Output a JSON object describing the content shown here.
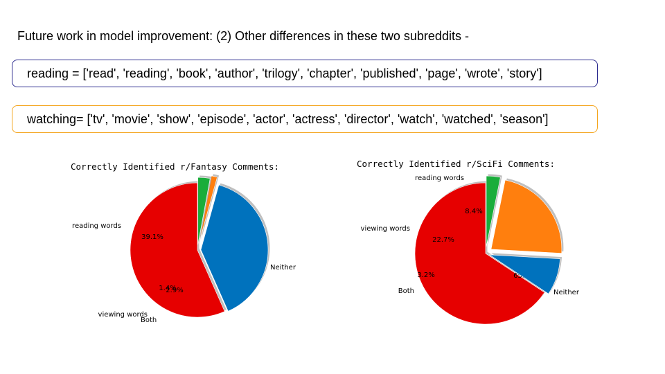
{
  "slide": {
    "heading": "Future work in model improvement: (2) Other differences in these two subreddits -",
    "reading_list": "reading = ['read', 'reading', 'book', 'author', 'trilogy', 'chapter', 'published', 'page', 'wrote', 'story']",
    "watching_list": "watching= ['tv', 'movie', 'show', 'episode', 'actor', 'actress', 'director', 'watch', 'watched', 'season']"
  },
  "colors": {
    "blue": "#0072bd",
    "orange": "#ff7f0e",
    "green": "#1aad3b",
    "red": "#e60000"
  },
  "chart_data": [
    {
      "type": "pie",
      "title": "Correctly Identified r/Fantasy Comments:",
      "categories": [
        "Neither",
        "reading words",
        "viewing words",
        "Both"
      ],
      "values": [
        56.7,
        39.1,
        1.4,
        2.9
      ],
      "labels": [
        "56.7%",
        "39.1%",
        "1.4%",
        "2.9%"
      ],
      "colors": [
        "#e60000",
        "#0072bd",
        "#ff7f0e",
        "#1aad3b"
      ],
      "exploded": true,
      "shadow": true
    },
    {
      "type": "pie",
      "title": "Correctly Identified r/SciFi Comments:",
      "categories": [
        "Neither",
        "reading words",
        "viewing words",
        "Both"
      ],
      "values": [
        65.7,
        8.4,
        22.7,
        3.2
      ],
      "labels": [
        "65.7%",
        "8.4%",
        "22.7%",
        "3.2%"
      ],
      "colors": [
        "#e60000",
        "#0072bd",
        "#ff7f0e",
        "#1aad3b"
      ],
      "exploded": true,
      "shadow": true
    }
  ]
}
